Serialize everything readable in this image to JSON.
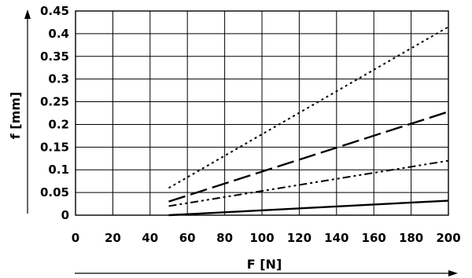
{
  "chart_data": {
    "type": "line",
    "xlabel": "F [N]",
    "ylabel": "f [mm]",
    "xlim": [
      0,
      200
    ],
    "ylim": [
      0,
      0.45
    ],
    "x_ticks": [
      "0",
      "20",
      "40",
      "60",
      "80",
      "100",
      "120",
      "140",
      "160",
      "180",
      "200"
    ],
    "y_ticks": [
      "0",
      "0.05",
      "0.1",
      "0.15",
      "0.2",
      "0.25",
      "0.3",
      "0.35",
      "0.4",
      "0.45"
    ],
    "grid": true,
    "series": [
      {
        "style": "dotted",
        "x": [
          50,
          200
        ],
        "y": [
          0.06,
          0.415
        ]
      },
      {
        "style": "long-dash",
        "x": [
          50,
          200
        ],
        "y": [
          0.03,
          0.228
        ]
      },
      {
        "style": "dash-dot-dot",
        "x": [
          50,
          200
        ],
        "y": [
          0.02,
          0.12
        ]
      },
      {
        "style": "solid",
        "x": [
          50,
          200
        ],
        "y": [
          0.0,
          0.032
        ]
      }
    ]
  }
}
